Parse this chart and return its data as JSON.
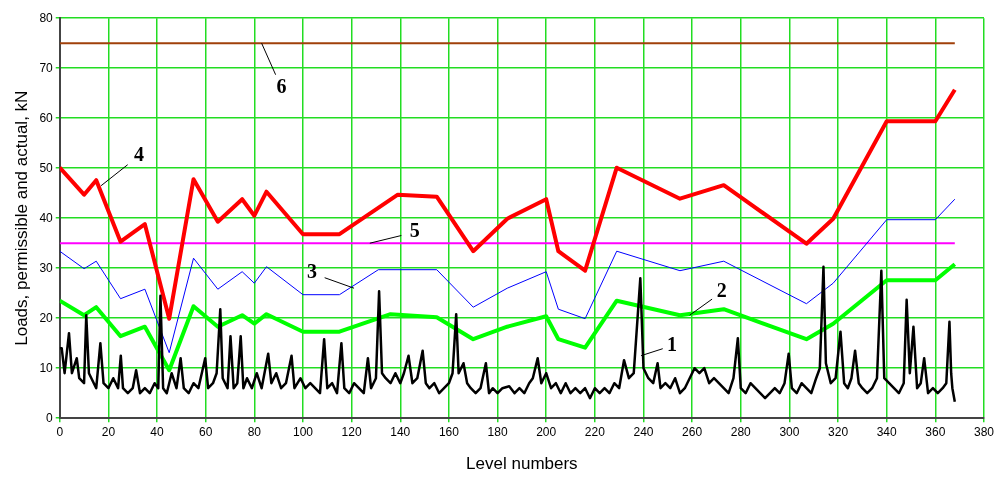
{
  "chart_data": {
    "type": "line",
    "xlabel": "Level numbers",
    "ylabel": "Loads, permissible and actual, kN",
    "xlim": [
      0,
      380
    ],
    "xticks": [
      0,
      20,
      40,
      60,
      80,
      100,
      120,
      140,
      160,
      180,
      200,
      220,
      240,
      260,
      280,
      300,
      320,
      340,
      360,
      380
    ],
    "ylim": [
      0,
      80
    ],
    "yticks": [
      0,
      10,
      20,
      30,
      40,
      50,
      60,
      70,
      80
    ],
    "grid": true,
    "legend": false,
    "marker": "none",
    "line_style": "solid",
    "series": [
      {
        "color": "#000000",
        "x": [
          0,
          0.8,
          2,
          3.8,
          5,
          7,
          8,
          10,
          10.9,
          12,
          14,
          15,
          16.7,
          18,
          20,
          22,
          24,
          25.1,
          26,
          28,
          30,
          31.4,
          33,
          35,
          37,
          39,
          40.5,
          41.4,
          42.5,
          44,
          46,
          48,
          49.7,
          51,
          53,
          55,
          57,
          59.8,
          61,
          63,
          64.5,
          66,
          67,
          69,
          70.2,
          71.5,
          73,
          74.4,
          75.5,
          77,
          79,
          81,
          83,
          85.7,
          87,
          89,
          91,
          93,
          95.3,
          96.5,
          99,
          101,
          103,
          105,
          107,
          108.7,
          110,
          112,
          114,
          115.8,
          117,
          119,
          121,
          123,
          125,
          126.7,
          128,
          130,
          131.3,
          132.5,
          134,
          136,
          138,
          140,
          141.5,
          143.4,
          145,
          147,
          149.2,
          150.5,
          152,
          154,
          156,
          158,
          160,
          161.5,
          163,
          164,
          166,
          167.5,
          169,
          171,
          173,
          175.2,
          176.5,
          178,
          180,
          182,
          184.8,
          187,
          189,
          191,
          193,
          194.5,
          196.5,
          198,
          200,
          202,
          204,
          206,
          208,
          210,
          212,
          214,
          216,
          218,
          220,
          222,
          224,
          226,
          228,
          230,
          232,
          234,
          236,
          238.7,
          240,
          242,
          244,
          245.8,
          247,
          249,
          251,
          253,
          255,
          257,
          259,
          261,
          263,
          265,
          267,
          269,
          271,
          273,
          275,
          277,
          278.8,
          280,
          282,
          284,
          286,
          288,
          290,
          292,
          294,
          296,
          298,
          299.7,
          301,
          303,
          305,
          307,
          309,
          311,
          312.5,
          314,
          315,
          317,
          319,
          321,
          322.5,
          324,
          325.5,
          327,
          328.5,
          330,
          332,
          334,
          336,
          337.8,
          339,
          341,
          343,
          345,
          347,
          348.2,
          349.5,
          351,
          352.5,
          354,
          355.4,
          357,
          359,
          361,
          363,
          364.5,
          365.8,
          366.5,
          367,
          368
        ],
        "values": [
          14,
          14,
          9,
          17,
          9,
          12,
          8,
          7,
          20.6,
          9,
          7,
          6,
          15,
          7,
          6,
          8,
          6,
          12.5,
          6,
          5,
          6,
          9.6,
          5,
          6,
          5,
          7,
          6,
          24.5,
          6,
          5,
          9,
          6,
          12,
          6,
          5,
          7,
          6,
          12,
          6,
          7,
          9,
          21.8,
          8,
          6,
          16.4,
          6,
          7,
          16.4,
          6,
          8,
          6,
          9,
          6,
          12.9,
          7,
          9,
          6,
          7,
          12.5,
          6,
          8,
          6,
          7,
          6,
          5,
          15.8,
          6,
          7,
          5,
          15,
          6,
          5,
          7,
          6,
          5,
          12,
          6,
          8,
          25.4,
          9,
          8,
          7,
          9,
          7,
          9,
          12.5,
          7,
          8,
          13.5,
          7,
          6,
          7,
          5,
          6,
          7,
          9,
          20.8,
          9,
          11,
          7,
          6,
          5,
          6,
          11,
          5,
          6,
          5,
          6,
          6.4,
          5,
          6,
          5,
          7,
          8,
          12,
          7,
          9,
          6,
          7,
          5,
          7,
          5,
          6,
          5,
          6,
          4,
          6,
          5,
          6,
          5,
          7,
          6,
          11.6,
          8,
          9,
          28,
          10,
          8,
          7,
          11,
          6,
          7,
          6,
          8,
          5,
          6,
          8,
          10,
          9,
          10,
          7,
          8,
          7,
          6,
          5,
          8,
          16,
          6,
          5,
          7,
          6,
          5,
          4,
          5,
          6,
          5,
          7,
          12.9,
          6,
          5,
          7,
          6,
          5,
          8,
          10,
          30.3,
          11,
          7,
          8,
          17.3,
          7,
          6,
          8,
          13.5,
          7,
          6,
          5,
          6,
          8,
          29.5,
          8,
          7,
          6,
          5,
          7,
          23.7,
          9,
          18.3,
          6,
          7,
          12,
          5,
          6,
          5,
          6,
          7,
          19.3,
          9,
          6,
          3.3
        ]
      },
      {
        "color": "#00ff00",
        "x": [
          0,
          10,
          15,
          25,
          35,
          45,
          55,
          65,
          75,
          80,
          85,
          100,
          115,
          136,
          155,
          170,
          184,
          200,
          205,
          216,
          229,
          255,
          273,
          307,
          318,
          340,
          360,
          368
        ],
        "values": [
          23.5,
          20.6,
          22.2,
          16.4,
          18.3,
          9.6,
          22.4,
          18.3,
          20.6,
          18.9,
          20.8,
          17.3,
          17.3,
          20.8,
          20.2,
          15.8,
          18.3,
          20.4,
          15.8,
          14.1,
          23.5,
          20.6,
          21.8,
          15.8,
          18.9,
          27.6,
          27.6,
          30.8
        ]
      },
      {
        "color": "#0000ff",
        "x": [
          0,
          10,
          15,
          25,
          35,
          45,
          55,
          65,
          75,
          80,
          85,
          100,
          115,
          131,
          155,
          170,
          184,
          200,
          205,
          216,
          229,
          255,
          273,
          307,
          318,
          340,
          360,
          368
        ],
        "values": [
          33.4,
          29.9,
          31.4,
          23.9,
          25.8,
          13.1,
          32,
          25.8,
          29.3,
          27,
          30.3,
          24.7,
          24.7,
          29.7,
          29.7,
          22.2,
          26,
          29.3,
          21.8,
          19.9,
          33.4,
          29.5,
          31.4,
          22.9,
          27,
          39.7,
          39.7,
          43.8
        ]
      },
      {
        "color": "#ff0000",
        "x": [
          0,
          10,
          15,
          25,
          35,
          45,
          55,
          65,
          75,
          80,
          85,
          100,
          115,
          139,
          155,
          170,
          184,
          200,
          205,
          216,
          229,
          255,
          273,
          307,
          318,
          340,
          360,
          368
        ],
        "values": [
          50.1,
          44.7,
          47.6,
          35.3,
          38.8,
          19.9,
          47.8,
          39.3,
          43.8,
          40.5,
          45.3,
          36.8,
          36.8,
          44.7,
          44.3,
          33.4,
          39.9,
          43.8,
          33.4,
          29.5,
          50.1,
          43.9,
          46.6,
          34.9,
          39.9,
          59.4,
          59.4,
          65.7
        ]
      },
      {
        "color": "#ff00ff",
        "x": [
          0,
          368
        ],
        "values": [
          35,
          35
        ]
      },
      {
        "color": "#a0400a",
        "x": [
          0,
          368
        ],
        "values": [
          75,
          75
        ]
      }
    ],
    "annotations": [
      {
        "text": "1",
        "x": 239,
        "y": 12.5
      },
      {
        "text": "2",
        "x": 259,
        "y": 20.6
      },
      {
        "text": "3",
        "x": 121,
        "y": 26
      },
      {
        "text": "4",
        "x": 17,
        "y": 46.5
      },
      {
        "text": "5",
        "x": 127.5,
        "y": 35
      },
      {
        "text": "6",
        "x": 83,
        "y": 75
      }
    ]
  }
}
